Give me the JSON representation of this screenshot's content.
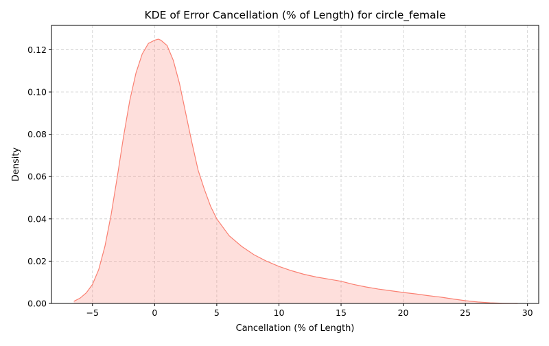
{
  "chart_data": {
    "type": "area",
    "title": "KDE of Error Cancellation (% of Length) for circle_female",
    "xlabel": "Cancellation (% of Length)",
    "ylabel": "Density",
    "xlim": [
      -8.3,
      30.9
    ],
    "ylim": [
      0,
      0.1315
    ],
    "x_ticks": [
      -5,
      0,
      5,
      10,
      15,
      20,
      25,
      30
    ],
    "x_tick_labels": [
      "−5",
      "0",
      "5",
      "10",
      "15",
      "20",
      "25",
      "30"
    ],
    "y_ticks": [
      0.0,
      0.02,
      0.04,
      0.06,
      0.08,
      0.1,
      0.12
    ],
    "y_tick_labels": [
      "0.00",
      "0.02",
      "0.04",
      "0.06",
      "0.08",
      "0.10",
      "0.12"
    ],
    "grid": true,
    "legend": "none",
    "colors": {
      "line": "#fa8072",
      "fill": "#fa8072",
      "grid": "#cccccc"
    },
    "series": [
      {
        "x": [
          -6.5,
          -6.0,
          -5.5,
          -5.0,
          -4.5,
          -4.0,
          -3.5,
          -3.0,
          -2.5,
          -2.0,
          -1.5,
          -1.0,
          -0.5,
          0.0,
          0.3,
          0.5,
          1.0,
          1.5,
          2.0,
          2.5,
          3.0,
          3.5,
          4.0,
          4.5,
          5.0,
          6.0,
          7.0,
          8.0,
          9.0,
          10.0,
          11.0,
          12.0,
          13.0,
          14.0,
          15.0,
          16.0,
          17.0,
          18.0,
          19.0,
          20.0,
          21.0,
          22.0,
          23.0,
          24.0,
          25.0,
          26.0,
          27.0,
          28.0,
          29.2
        ],
        "y": [
          0.001,
          0.0025,
          0.005,
          0.009,
          0.016,
          0.027,
          0.042,
          0.06,
          0.079,
          0.096,
          0.109,
          0.118,
          0.123,
          0.1245,
          0.125,
          0.1245,
          0.122,
          0.115,
          0.104,
          0.09,
          0.076,
          0.063,
          0.054,
          0.046,
          0.04,
          0.032,
          0.027,
          0.023,
          0.02,
          0.0175,
          0.0155,
          0.0138,
          0.0125,
          0.0115,
          0.0105,
          0.009,
          0.0078,
          0.0068,
          0.006,
          0.0052,
          0.0045,
          0.0037,
          0.003,
          0.0021,
          0.0013,
          0.0007,
          0.0003,
          0.0001,
          0.0
        ]
      }
    ]
  }
}
